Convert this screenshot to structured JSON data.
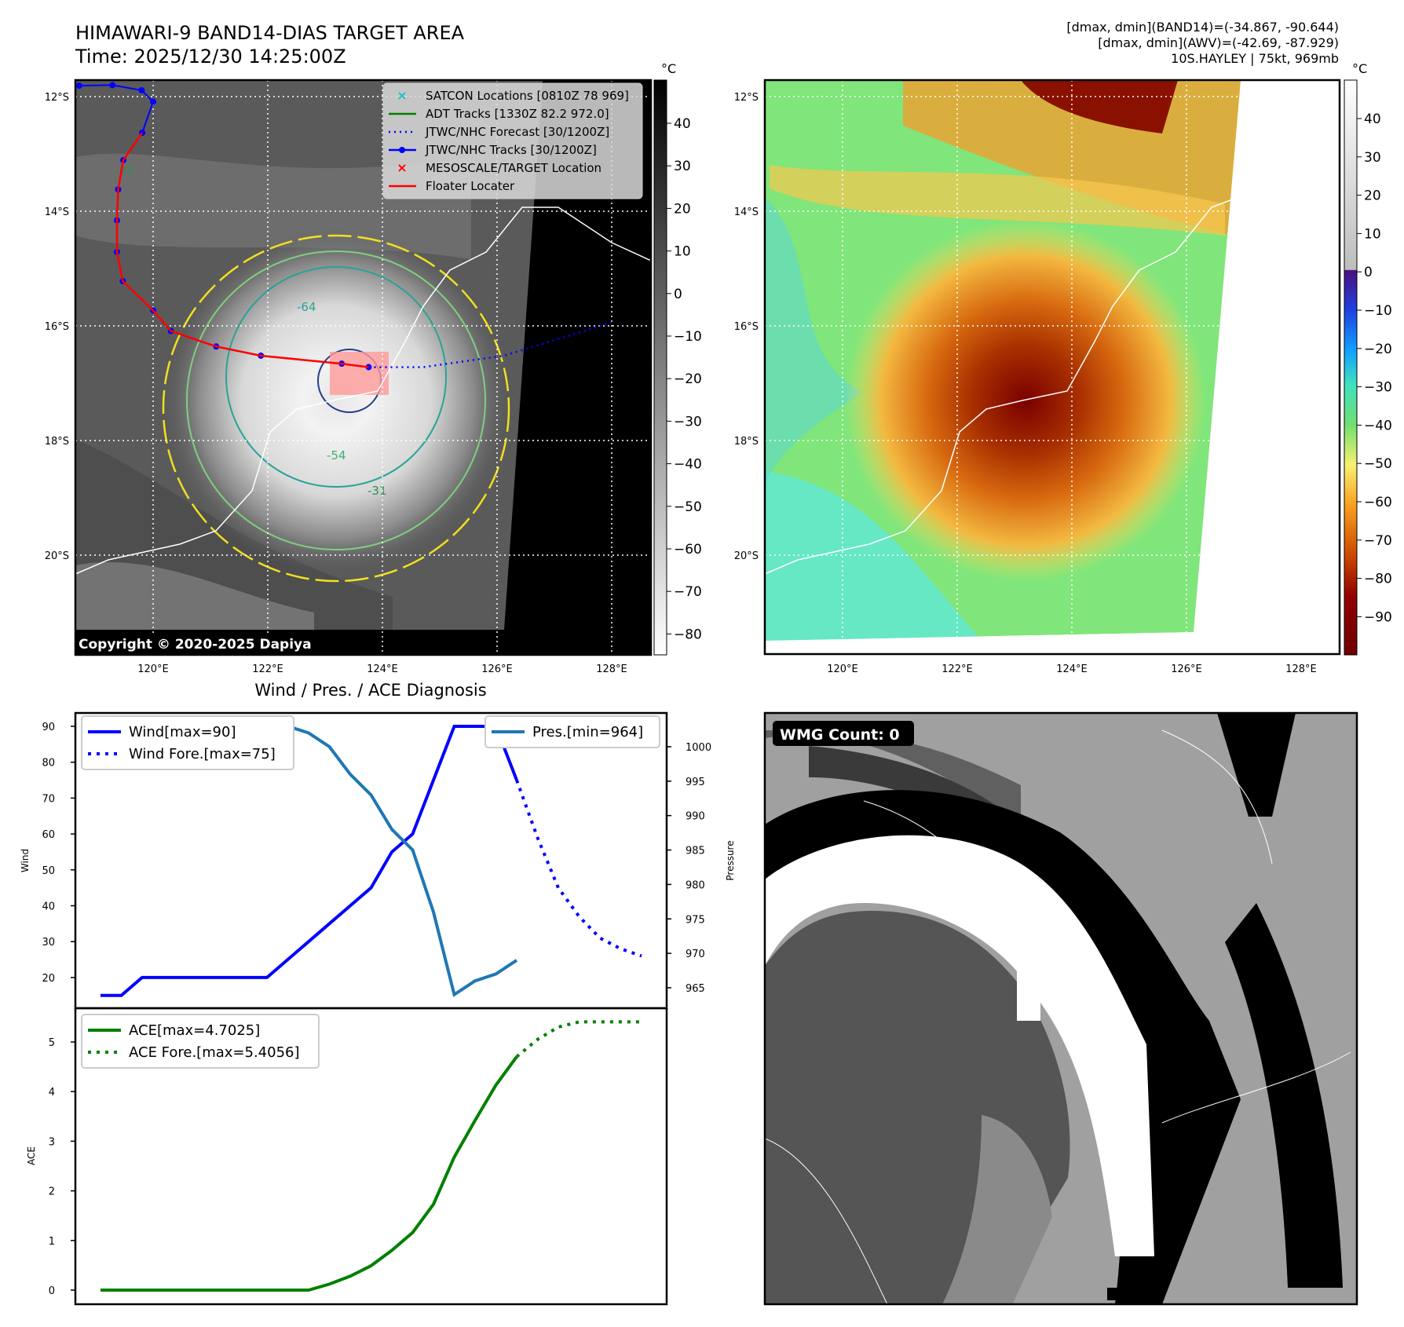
{
  "header": {
    "title_line1": "HIMAWARI-9 BAND14-DIAS TARGET AREA",
    "title_line2": "Time: 2025/12/30 14:25:00Z",
    "info_line1": "[dmax, dmin](BAND14)=(-34.867, -90.644)",
    "info_line2": "[dmax, dmin](AWV)=(-42.69, -87.929)",
    "info_line3": "10S.HAYLEY | 75kt, 969mb"
  },
  "maps": {
    "lon_ticks": [
      "120°E",
      "122°E",
      "124°E",
      "126°E",
      "128°E"
    ],
    "lat_ticks": [
      "12°S",
      "14°S",
      "16°S",
      "18°S",
      "20°S"
    ],
    "copyright": "Copyright © 2020-2025 Dapiya",
    "colorbar_unit": "°C",
    "colorbar1_ticks": [
      "40",
      "30",
      "20",
      "10",
      "0",
      "−10",
      "−20",
      "−30",
      "−40",
      "−50",
      "−60",
      "−70",
      "−80"
    ],
    "colorbar2_ticks": [
      "40",
      "30",
      "20",
      "10",
      "0",
      "−10",
      "−20",
      "−30",
      "−40",
      "−50",
      "−60",
      "−70",
      "−80",
      "−90"
    ],
    "legend": [
      {
        "label": "SATCON Locations [0810Z 78 969]",
        "color": "#17becf",
        "marker": "x"
      },
      {
        "label": "ADT Tracks [1330Z 82.2 972.0]",
        "color": "#008000",
        "marker": "line"
      },
      {
        "label": "JTWC/NHC Forecast [30/1200Z]",
        "color": "#0000ff",
        "marker": "dotted"
      },
      {
        "label": "JTWC/NHC Tracks [30/1200Z]",
        "color": "#0000ff",
        "marker": "line-dot"
      },
      {
        "label": "MESOSCALE/TARGET Location",
        "color": "#ff0000",
        "marker": "x"
      },
      {
        "label": "Floater Locater",
        "color": "#ff0000",
        "marker": "line"
      }
    ],
    "contour_labels": [
      "-31",
      "-54",
      "-64"
    ],
    "jtwc_track": [
      [
        118.71,
        11.81
      ],
      [
        119.29,
        11.8
      ],
      [
        119.8,
        11.89
      ],
      [
        120.0,
        12.09
      ],
      [
        119.81,
        12.63
      ],
      [
        119.48,
        13.11
      ],
      [
        119.39,
        13.62
      ],
      [
        119.37,
        14.16
      ],
      [
        119.37,
        14.71
      ],
      [
        119.47,
        15.22
      ],
      [
        120.0,
        15.73
      ],
      [
        120.31,
        16.09
      ],
      [
        121.1,
        16.36
      ],
      [
        121.88,
        16.52
      ],
      [
        123.29,
        16.66
      ],
      [
        123.76,
        16.72
      ]
    ],
    "jtwc_forecast": [
      [
        123.76,
        16.72
      ],
      [
        124.71,
        16.72
      ],
      [
        126.12,
        16.52
      ],
      [
        128.0,
        15.94
      ]
    ],
    "wmg_label": "WMG Count: 0"
  },
  "chart_data": [
    {
      "type": "line",
      "title": "Wind / Pres. / ACE Diagnosis",
      "ylabel": "Wind",
      "ylabel_right": "Pressure",
      "ylim": [
        11,
        93
      ],
      "ylim_right": [
        962,
        1004.5
      ],
      "yticks": [
        "20",
        "30",
        "40",
        "50",
        "60",
        "70",
        "80",
        "90"
      ],
      "yticks_right": [
        "965",
        "970",
        "975",
        "980",
        "985",
        "990",
        "995",
        "1000"
      ],
      "series": [
        {
          "name": "Wind[max=90]",
          "axis": "left",
          "style": "solid",
          "color": "#0000ff",
          "x": [
            0,
            1,
            2,
            3,
            4,
            5,
            6,
            7,
            8,
            9,
            10,
            11,
            12,
            13,
            14,
            15,
            16,
            17,
            18,
            19,
            20
          ],
          "values": [
            15,
            15,
            20,
            20,
            20,
            20,
            20,
            20,
            20,
            25,
            30,
            35,
            40,
            45,
            55,
            60,
            75,
            90,
            90,
            90,
            75
          ]
        },
        {
          "name": "Wind Fore.[max=75]",
          "axis": "left",
          "style": "dotted",
          "color": "#0000ff",
          "x": [
            20,
            21,
            22,
            23,
            24,
            25,
            26
          ],
          "values": [
            75,
            59,
            45,
            37,
            31,
            28,
            26
          ]
        },
        {
          "name": "Pres.[min=964]",
          "axis": "right",
          "style": "solid",
          "color": "#1f77b4",
          "x": [
            0,
            1,
            2,
            3,
            4,
            5,
            6,
            7,
            8,
            9,
            10,
            11,
            12,
            13,
            14,
            15,
            16,
            17,
            18,
            19,
            20
          ],
          "values": [
            1003,
            1003,
            1003,
            1003,
            1003,
            1003,
            1003,
            1003,
            1003,
            1003,
            1002,
            1000,
            996,
            993,
            988,
            985,
            976,
            964,
            966,
            967,
            969
          ]
        }
      ]
    },
    {
      "type": "line",
      "ylabel": "ACE",
      "ylim": [
        -0.3,
        5.8
      ],
      "yticks": [
        "0",
        "1",
        "2",
        "3",
        "4",
        "5"
      ],
      "series": [
        {
          "name": "ACE[max=4.7025]",
          "style": "solid",
          "color": "#008000",
          "x": [
            0,
            1,
            2,
            3,
            4,
            5,
            6,
            7,
            8,
            9,
            10,
            11,
            12,
            13,
            14,
            15,
            16,
            17,
            18,
            19,
            20
          ],
          "values": [
            0,
            0,
            0,
            0,
            0,
            0,
            0,
            0,
            0,
            0,
            0,
            0.12,
            0.28,
            0.49,
            0.8,
            1.16,
            1.73,
            2.68,
            3.42,
            4.13,
            4.7025
          ]
        },
        {
          "name": "ACE Fore.[max=5.4056]",
          "style": "dotted",
          "color": "#008000",
          "x": [
            20,
            21,
            22,
            23,
            24,
            25,
            26
          ],
          "values": [
            4.7025,
            5.05,
            5.3,
            5.4056,
            5.4056,
            5.4056,
            5.4056
          ]
        }
      ]
    }
  ]
}
